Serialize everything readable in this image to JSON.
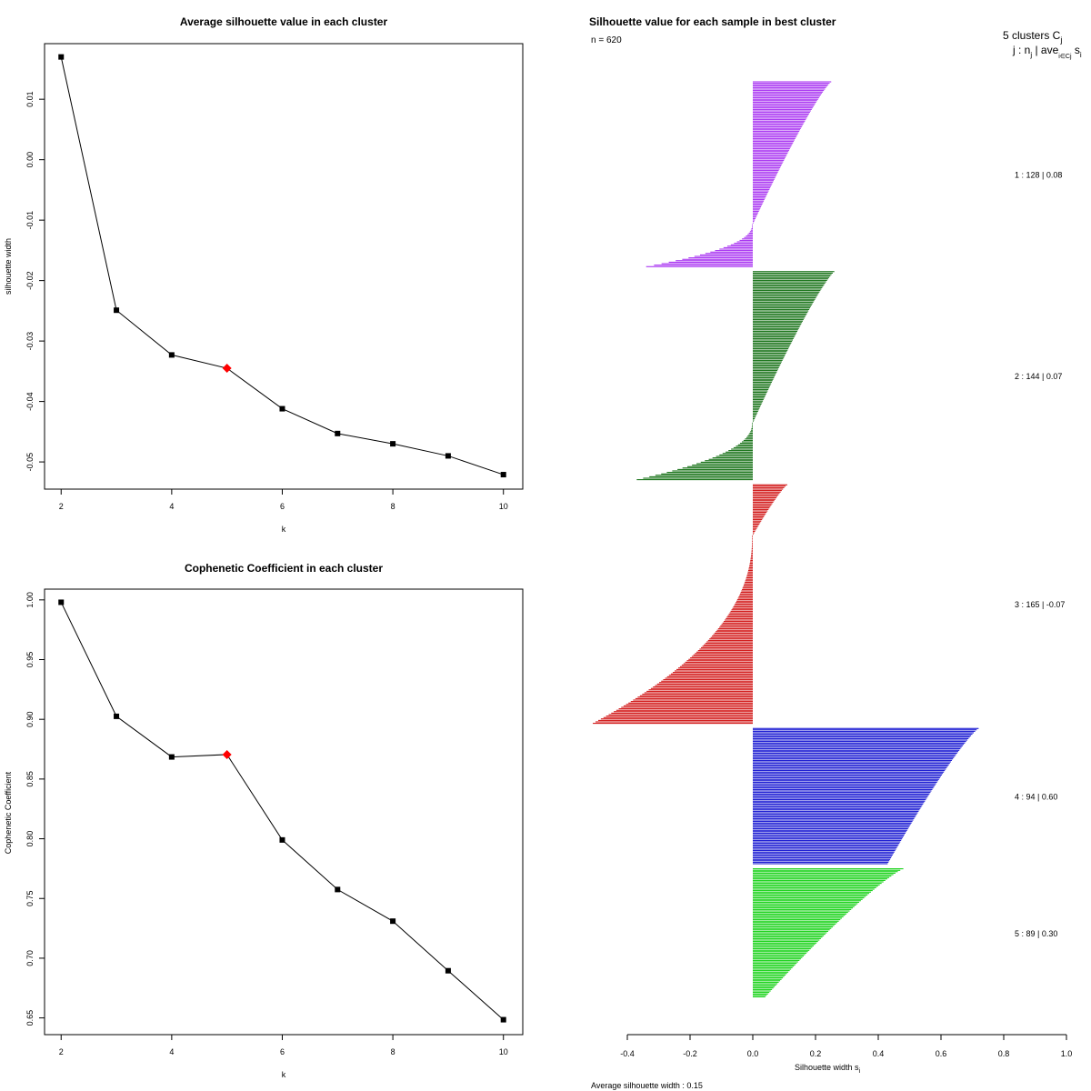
{
  "chart_data": [
    {
      "type": "line",
      "title": "Average silhouette value in each cluster",
      "xlabel": "k",
      "ylabel": "silhouette width",
      "x": [
        2,
        3,
        4,
        5,
        6,
        7,
        8,
        9,
        10
      ],
      "y": [
        0.017,
        -0.0249,
        -0.0323,
        -0.0345,
        -0.0412,
        -0.0453,
        -0.047,
        -0.049,
        -0.0521
      ],
      "highlight_x": 5,
      "xlim": [
        1.7,
        10.35
      ],
      "ylim": [
        -0.0545,
        0.0192
      ],
      "xticks": [
        2,
        4,
        6,
        8,
        10
      ],
      "xtick_labels": [
        "2",
        "4",
        "6",
        "8",
        "10"
      ],
      "yticks": [
        0.01,
        0.0,
        -0.01,
        -0.02,
        -0.03,
        -0.04,
        -0.05
      ],
      "ytick_labels": [
        "0.01",
        "0.00",
        "-0.01",
        "-0.02",
        "-0.03",
        "-0.04",
        "-0.05"
      ],
      "colors": {
        "line": "#000000",
        "point": "#000000",
        "highlight": "#ff0000"
      }
    },
    {
      "type": "line",
      "title": "Cophenetic Coefficient in each cluster",
      "xlabel": "k",
      "ylabel": "Cophenetic Coefficient",
      "x": [
        2,
        3,
        4,
        5,
        6,
        7,
        8,
        9,
        10
      ],
      "y": [
        0.998,
        0.9025,
        0.8685,
        0.8705,
        0.799,
        0.7575,
        0.731,
        0.6895,
        0.6485
      ],
      "highlight_x": 5,
      "xlim": [
        1.7,
        10.35
      ],
      "ylim": [
        0.636,
        1.009
      ],
      "xticks": [
        2,
        4,
        6,
        8,
        10
      ],
      "xtick_labels": [
        "2",
        "4",
        "6",
        "8",
        "10"
      ],
      "yticks": [
        1.0,
        0.95,
        0.9,
        0.85,
        0.8,
        0.75,
        0.7,
        0.65
      ],
      "ytick_labels": [
        "1.00",
        "0.95",
        "0.90",
        "0.85",
        "0.80",
        "0.75",
        "0.70",
        "0.65"
      ],
      "colors": {
        "line": "#000000",
        "point": "#000000",
        "highlight": "#ff0000"
      }
    },
    {
      "type": "bar",
      "orientation": "horizontal",
      "title": "Silhouette value for each sample in best cluster",
      "n_label": "n = 620",
      "header_clusters": "5 clusters  C",
      "header_j_sub": "j",
      "header_line2": "j :  n",
      "header_line2_sub": "j",
      "header_line2_rest": " | ave",
      "header_line2_sub2": "i∈Cj",
      "header_line2_end": " s",
      "header_line2_sub3": "i",
      "xlabel": "Silhouette width s",
      "xlabel_sub": "i",
      "footer": "Average silhouette width :  0.15",
      "xlim": [
        -0.4,
        1.0
      ],
      "xticks": [
        -0.4,
        -0.2,
        0.0,
        0.2,
        0.4,
        0.6,
        0.8,
        1.0
      ],
      "xtick_labels": [
        "-0.4",
        "-0.2",
        "0.0",
        "0.2",
        "0.4",
        "0.6",
        "0.8",
        "1.0"
      ],
      "clusters": [
        {
          "label": "1 :   128  |  0.08",
          "n": 128,
          "avg": 0.08,
          "max": 0.25,
          "min": -0.34,
          "pos_n": 98,
          "neg_n": 30,
          "color": "#a020f0"
        },
        {
          "label": "2 :   144  |  0.07",
          "n": 144,
          "avg": 0.07,
          "max": 0.26,
          "min": -0.37,
          "pos_n": 104,
          "neg_n": 40,
          "color": "#006400"
        },
        {
          "label": "3 :   165  |  -0.07",
          "n": 165,
          "avg": -0.07,
          "max": 0.11,
          "min": -0.51,
          "pos_n": 35,
          "neg_n": 130,
          "color": "#cd0000"
        },
        {
          "label": "4 :   94  |  0.60",
          "n": 94,
          "avg": 0.6,
          "max": 0.72,
          "min": 0.43,
          "pos_n": 94,
          "neg_n": 0,
          "color": "#0000cd"
        },
        {
          "label": "5 :   89  |  0.30",
          "n": 89,
          "avg": 0.3,
          "max": 0.48,
          "min": 0.04,
          "pos_n": 89,
          "neg_n": 0,
          "color": "#00cd00"
        }
      ]
    }
  ]
}
